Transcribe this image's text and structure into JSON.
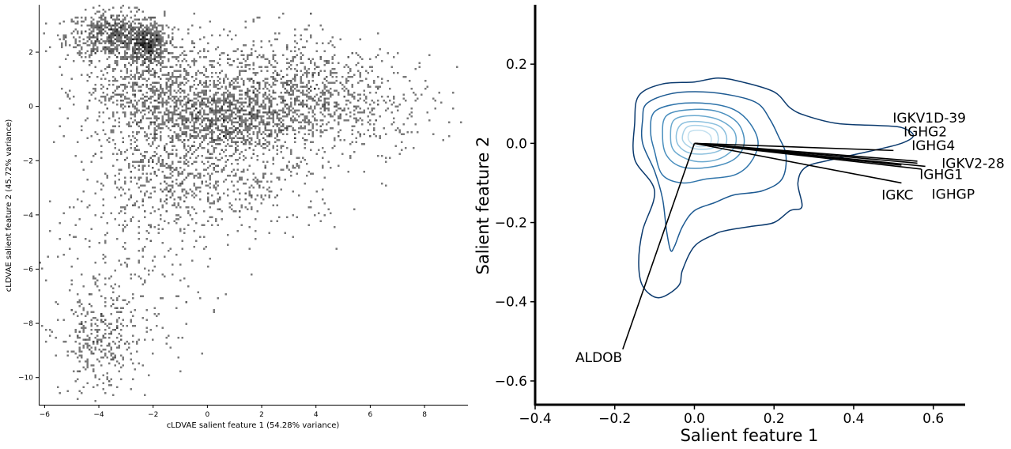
{
  "chart_data": [
    {
      "type": "scatter",
      "title": "",
      "xlabel": "cLDVAE salient feature 1 (54.28% variance)",
      "ylabel": "cLDVAE salient feature 2 (45.72% variance)",
      "xlim": [
        -6.2,
        9.6
      ],
      "ylim": [
        -11,
        3.75
      ],
      "xticks": [
        -6,
        -4,
        -2,
        0,
        2,
        4,
        6,
        8
      ],
      "yticks": [
        -10,
        -8,
        -6,
        -4,
        -2,
        0,
        2
      ],
      "grid": false,
      "marker_color": "#4d4d4d",
      "density_description": "dense 2D histogram of cells",
      "clusters": [
        {
          "center": [
            -3.4,
            2.6
          ],
          "spread": [
            0.9,
            0.45
          ],
          "count": 650
        },
        {
          "center": [
            -2.2,
            2.3
          ],
          "spread": [
            0.35,
            0.35
          ],
          "count": 350
        },
        {
          "center": [
            -2.0,
            0.6
          ],
          "spread": [
            1.3,
            1.1
          ],
          "count": 900
        },
        {
          "center": [
            0.5,
            -0.5
          ],
          "spread": [
            1.3,
            0.6
          ],
          "count": 800
        },
        {
          "center": [
            2.5,
            0.4
          ],
          "spread": [
            1.6,
            1.1
          ],
          "count": 900
        },
        {
          "center": [
            5.5,
            0.2
          ],
          "spread": [
            1.5,
            0.9
          ],
          "count": 350
        },
        {
          "center": [
            -1.5,
            -2.6
          ],
          "spread": [
            1.4,
            1.0
          ],
          "count": 450
        },
        {
          "center": [
            1.5,
            -2.8
          ],
          "spread": [
            1.8,
            1.0
          ],
          "count": 300
        },
        {
          "center": [
            -4.0,
            -8.8
          ],
          "spread": [
            0.7,
            0.9
          ],
          "count": 260
        },
        {
          "center": [
            -3.0,
            -6.5
          ],
          "spread": [
            1.5,
            1.8
          ],
          "count": 260
        }
      ]
    },
    {
      "type": "line",
      "subtype": "kde_contour_biplot",
      "title": "",
      "xlabel": "Salient feature 1",
      "ylabel": "Salient feature 2",
      "xlim": [
        -0.4,
        0.68
      ],
      "ylim": [
        -0.66,
        0.35
      ],
      "xticks": [
        -0.4,
        -0.2,
        0.0,
        0.2,
        0.4,
        0.6
      ],
      "yticks": [
        -0.6,
        -0.4,
        -0.2,
        0.0,
        0.2
      ],
      "xtick_labels": [
        "−0.4",
        "−0.2",
        "0.0",
        "0.2",
        "0.4",
        "0.6"
      ],
      "ytick_labels": [
        "−0.6",
        "−0.4",
        "−0.2",
        "0.0",
        "0.2"
      ],
      "grid": false,
      "colormap": [
        "#0b3a6e",
        "#1d5a92",
        "#2f74aa",
        "#4a8fbe",
        "#6aa9cf",
        "#8cc0de",
        "#a9d2e8",
        "#c3e0ef"
      ],
      "contours": [
        {
          "level": 1,
          "points": [
            [
              -0.14,
              0.12
            ],
            [
              -0.08,
              0.15
            ],
            [
              0.0,
              0.155
            ],
            [
              0.06,
              0.165
            ],
            [
              0.12,
              0.155
            ],
            [
              0.2,
              0.13
            ],
            [
              0.24,
              0.09
            ],
            [
              0.28,
              0.07
            ],
            [
              0.36,
              0.05
            ],
            [
              0.46,
              0.045
            ],
            [
              0.52,
              0.04
            ],
            [
              0.55,
              0.02
            ],
            [
              0.52,
              0.0
            ],
            [
              0.44,
              -0.02
            ],
            [
              0.35,
              -0.04
            ],
            [
              0.28,
              -0.06
            ],
            [
              0.26,
              -0.1
            ],
            [
              0.27,
              -0.16
            ],
            [
              0.24,
              -0.17
            ],
            [
              0.2,
              -0.2
            ],
            [
              0.14,
              -0.21
            ],
            [
              0.08,
              -0.22
            ],
            [
              0.05,
              -0.23
            ],
            [
              0.0,
              -0.26
            ],
            [
              -0.03,
              -0.32
            ],
            [
              -0.04,
              -0.36
            ],
            [
              -0.09,
              -0.39
            ],
            [
              -0.13,
              -0.36
            ],
            [
              -0.14,
              -0.3
            ],
            [
              -0.13,
              -0.22
            ],
            [
              -0.1,
              -0.12
            ],
            [
              -0.15,
              -0.04
            ],
            [
              -0.15,
              0.05
            ]
          ]
        },
        {
          "level": 2,
          "points": [
            [
              -0.12,
              0.1
            ],
            [
              -0.06,
              0.125
            ],
            [
              0.02,
              0.13
            ],
            [
              0.1,
              0.12
            ],
            [
              0.16,
              0.1
            ],
            [
              0.19,
              0.06
            ],
            [
              0.21,
              0.02
            ],
            [
              0.23,
              -0.03
            ],
            [
              0.22,
              -0.09
            ],
            [
              0.17,
              -0.12
            ],
            [
              0.1,
              -0.13
            ],
            [
              0.05,
              -0.15
            ],
            [
              0.0,
              -0.17
            ],
            [
              -0.03,
              -0.21
            ],
            [
              -0.05,
              -0.26
            ],
            [
              -0.06,
              -0.27
            ],
            [
              -0.07,
              -0.22
            ],
            [
              -0.08,
              -0.14
            ],
            [
              -0.1,
              -0.07
            ],
            [
              -0.13,
              0.0
            ],
            [
              -0.13,
              0.06
            ]
          ]
        },
        {
          "level": 3,
          "points": [
            [
              -0.1,
              0.08
            ],
            [
              -0.04,
              0.1
            ],
            [
              0.04,
              0.1
            ],
            [
              0.1,
              0.085
            ],
            [
              0.14,
              0.05
            ],
            [
              0.16,
              0.0
            ],
            [
              0.14,
              -0.05
            ],
            [
              0.1,
              -0.08
            ],
            [
              0.03,
              -0.09
            ],
            [
              -0.03,
              -0.1
            ],
            [
              -0.08,
              -0.08
            ],
            [
              -0.1,
              -0.02
            ],
            [
              -0.11,
              0.03
            ]
          ]
        },
        {
          "level": 4,
          "points": [
            [
              -0.07,
              0.07
            ],
            [
              -0.01,
              0.085
            ],
            [
              0.06,
              0.08
            ],
            [
              0.11,
              0.05
            ],
            [
              0.125,
              0.0
            ],
            [
              0.1,
              -0.04
            ],
            [
              0.04,
              -0.06
            ],
            [
              -0.03,
              -0.06
            ],
            [
              -0.07,
              -0.03
            ],
            [
              -0.08,
              0.02
            ]
          ]
        },
        {
          "level": 5,
          "points": [
            [
              -0.05,
              0.06
            ],
            [
              0.0,
              0.07
            ],
            [
              0.06,
              0.06
            ],
            [
              0.1,
              0.03
            ],
            [
              0.1,
              -0.01
            ],
            [
              0.06,
              -0.04
            ],
            [
              0.0,
              -0.045
            ],
            [
              -0.05,
              -0.02
            ],
            [
              -0.06,
              0.02
            ]
          ]
        },
        {
          "level": 6,
          "points": [
            [
              -0.03,
              0.05
            ],
            [
              0.01,
              0.055
            ],
            [
              0.06,
              0.045
            ],
            [
              0.08,
              0.02
            ],
            [
              0.075,
              -0.01
            ],
            [
              0.04,
              -0.025
            ],
            [
              -0.01,
              -0.025
            ],
            [
              -0.04,
              -0.005
            ],
            [
              -0.045,
              0.025
            ]
          ]
        },
        {
          "level": 7,
          "points": [
            [
              -0.02,
              0.04
            ],
            [
              0.01,
              0.045
            ],
            [
              0.05,
              0.035
            ],
            [
              0.06,
              0.01
            ],
            [
              0.05,
              -0.01
            ],
            [
              0.02,
              -0.015
            ],
            [
              -0.01,
              -0.01
            ],
            [
              -0.03,
              0.01
            ]
          ]
        },
        {
          "level": 8,
          "points": [
            [
              -0.01,
              0.03
            ],
            [
              0.02,
              0.032
            ],
            [
              0.04,
              0.02
            ],
            [
              0.04,
              0.0
            ],
            [
              0.02,
              -0.008
            ],
            [
              0.0,
              -0.005
            ],
            [
              -0.015,
              0.01
            ]
          ]
        }
      ],
      "loadings": [
        {
          "gene": "IGKV1D-39",
          "end": [
            0.5,
            -0.018
          ],
          "label_pos": [
            0.59,
            0.065
          ]
        },
        {
          "gene": "IGHG2",
          "end": [
            0.56,
            -0.05
          ],
          "label_pos": [
            0.58,
            0.03
          ]
        },
        {
          "gene": "IGHG4",
          "end": [
            0.56,
            -0.045
          ],
          "label_pos": [
            0.6,
            -0.005
          ]
        },
        {
          "gene": "IGKV2-28",
          "end": [
            0.58,
            -0.058
          ],
          "label_pos": [
            0.7,
            -0.05
          ]
        },
        {
          "gene": "IGHG1",
          "end": [
            0.57,
            -0.065
          ],
          "label_pos": [
            0.62,
            -0.078
          ]
        },
        {
          "gene": "IGHGP",
          "end": [
            0.52,
            -0.055
          ],
          "label_pos": [
            0.65,
            -0.128
          ]
        },
        {
          "gene": "IGKC",
          "end": [
            0.52,
            -0.1
          ],
          "label_pos": [
            0.51,
            -0.13
          ]
        },
        {
          "gene": "ALDOB",
          "end": [
            -0.18,
            -0.52
          ],
          "label_pos": [
            -0.24,
            -0.54
          ]
        }
      ]
    }
  ]
}
